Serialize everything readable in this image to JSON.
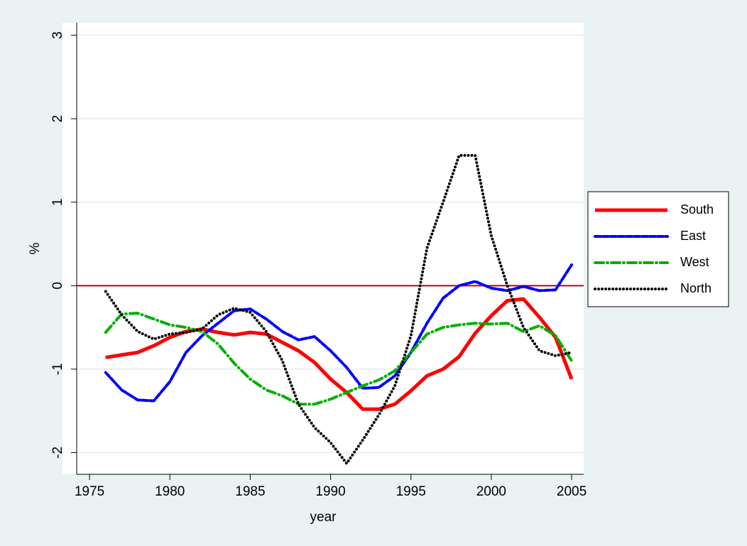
{
  "chart_data": {
    "type": "line",
    "x_label": "year",
    "y_label": "%",
    "x": [
      1976,
      1977,
      1978,
      1979,
      1980,
      1981,
      1982,
      1983,
      1984,
      1985,
      1986,
      1987,
      1988,
      1989,
      1990,
      1991,
      1992,
      1993,
      1994,
      1995,
      1996,
      1997,
      1998,
      1999,
      2000,
      2001,
      2002,
      2003,
      2004,
      2005
    ],
    "series": [
      {
        "name": "South",
        "color": "#ff0000",
        "style": "solid",
        "values": [
          -0.86,
          -0.83,
          -0.8,
          -0.72,
          -0.62,
          -0.55,
          -0.52,
          -0.56,
          -0.59,
          -0.56,
          -0.58,
          -0.68,
          -0.78,
          -0.92,
          -1.12,
          -1.28,
          -1.48,
          -1.48,
          -1.42,
          -1.26,
          -1.08,
          -1.0,
          -0.85,
          -0.57,
          -0.36,
          -0.18,
          -0.16,
          -0.38,
          -0.62,
          -1.12
        ]
      },
      {
        "name": "East",
        "color": "#0000ff",
        "style": "dash",
        "values": [
          -1.04,
          -1.25,
          -1.37,
          -1.38,
          -1.15,
          -0.8,
          -0.6,
          -0.45,
          -0.3,
          -0.28,
          -0.4,
          -0.55,
          -0.65,
          -0.61,
          -0.78,
          -0.98,
          -1.23,
          -1.22,
          -1.08,
          -0.8,
          -0.45,
          -0.15,
          0.0,
          0.05,
          -0.03,
          -0.06,
          -0.01,
          -0.06,
          -0.05,
          0.25
        ]
      },
      {
        "name": "West",
        "color": "#00b000",
        "style": "dashdot",
        "values": [
          -0.56,
          -0.34,
          -0.33,
          -0.4,
          -0.47,
          -0.5,
          -0.55,
          -0.7,
          -0.93,
          -1.12,
          -1.25,
          -1.32,
          -1.42,
          -1.42,
          -1.36,
          -1.28,
          -1.2,
          -1.13,
          -1.02,
          -0.8,
          -0.58,
          -0.5,
          -0.47,
          -0.45,
          -0.46,
          -0.45,
          -0.55,
          -0.48,
          -0.6,
          -0.9
        ]
      },
      {
        "name": "North",
        "color": "#000000",
        "style": "dot",
        "values": [
          -0.07,
          -0.35,
          -0.55,
          -0.64,
          -0.58,
          -0.56,
          -0.52,
          -0.35,
          -0.27,
          -0.32,
          -0.55,
          -0.9,
          -1.42,
          -1.7,
          -1.88,
          -2.13,
          -1.85,
          -1.55,
          -1.2,
          -0.6,
          0.45,
          1.0,
          1.56,
          1.56,
          0.6,
          0.0,
          -0.5,
          -0.78,
          -0.84,
          -0.8
        ]
      }
    ],
    "xlim": [
      1974.2,
      2005.75
    ],
    "xticks": [
      1975,
      1980,
      1985,
      1990,
      1995,
      2000,
      2005
    ],
    "ylim": [
      -2.26,
      3.15
    ],
    "yticks": [
      -2,
      -1,
      0,
      1,
      2,
      3
    ],
    "grid": true,
    "hline": 0,
    "hline_color": "#c00020",
    "legend": "right"
  }
}
